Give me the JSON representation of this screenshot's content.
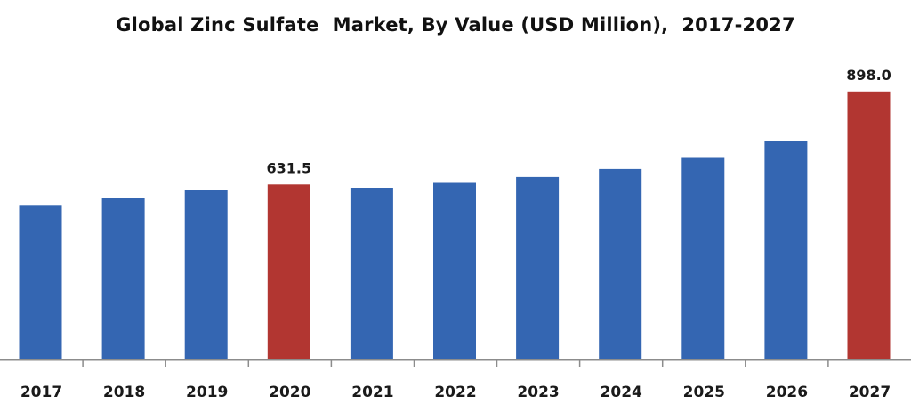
{
  "chart_data": {
    "type": "bar",
    "title": "Global Zinc Sulfate  Market, By Value (USD Million),  2017-2027",
    "xlabel": "",
    "ylabel": "",
    "categories": [
      "2017",
      "2018",
      "2019",
      "2020",
      "2021",
      "2022",
      "2023",
      "2024",
      "2025",
      "2026",
      "2027"
    ],
    "series": [
      {
        "values": [
          573,
          594,
          617,
          631.5,
          622,
          636,
          653,
          676,
          710,
          756,
          898.0
        ]
      }
    ],
    "data_labels": [
      {
        "category": "2020",
        "text": "631.5"
      },
      {
        "category": "2027",
        "text": "898.0"
      }
    ],
    "ylim": [
      130,
      900
    ],
    "grid": false,
    "legend": "none",
    "colors": {
      "bar": "#3466b2",
      "highlight": "#b23631",
      "axis": "#8c8c8c"
    },
    "highlight_categories": [
      "2020",
      "2027"
    ]
  }
}
